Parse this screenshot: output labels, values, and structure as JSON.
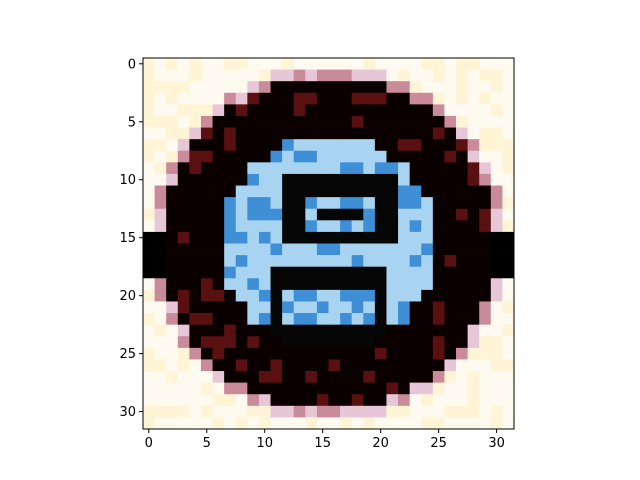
{
  "figure": {
    "content": "pixelated 32x32 image of a circular road sign",
    "colors": {
      "ring": "#0a0000",
      "ring_highlight": "#5a1010",
      "disc": "#a8d4f2",
      "disc_dark": "#3f8fd6",
      "glyph": "#060606",
      "background": "#fffaf0",
      "bar": "#000000"
    }
  },
  "axes": {
    "x_ticks": [
      "0",
      "5",
      "10",
      "15",
      "20",
      "25",
      "30"
    ],
    "y_ticks": [
      "0",
      "5",
      "10",
      "15",
      "20",
      "25",
      "30"
    ]
  }
}
